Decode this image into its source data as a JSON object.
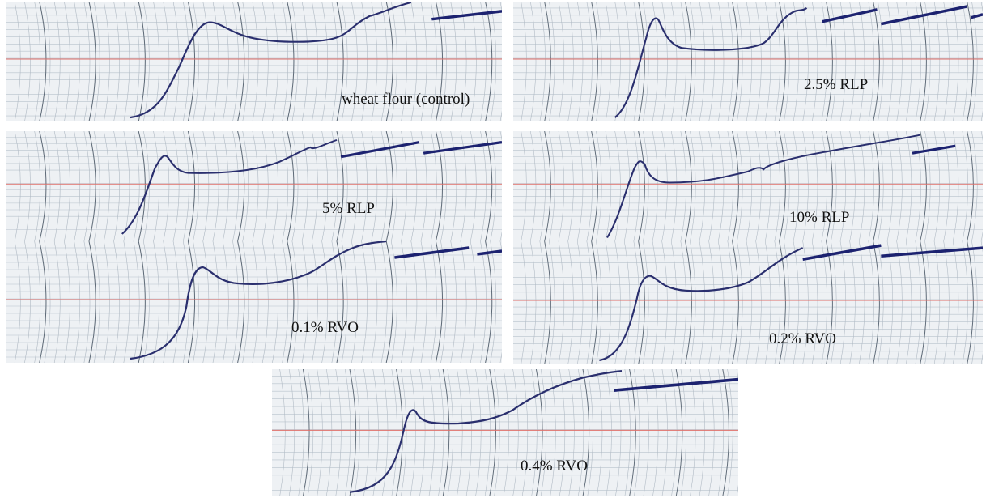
{
  "panels": [
    {
      "label": "wheat flour (control)"
    },
    {
      "label": "2.5% RLP"
    },
    {
      "label": "5% RLP"
    },
    {
      "label": "10% RLP"
    },
    {
      "label": "0.1% RVO"
    },
    {
      "label": "0.2% RVO"
    },
    {
      "label": "0.4% RVO"
    }
  ]
}
